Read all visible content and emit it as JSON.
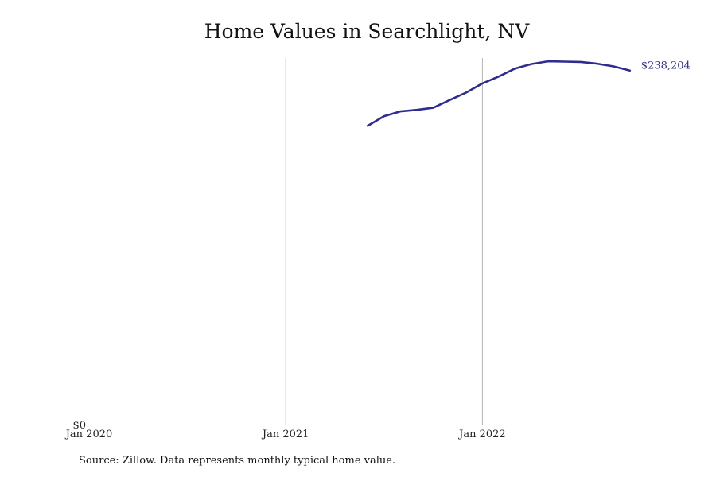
{
  "chart_data": {
    "type": "line",
    "title": "Home Values in Searchlight, NV",
    "xlabel": "",
    "ylabel": "",
    "x_ticks": [
      "Jan 2020",
      "Jan 2021",
      "Jan 2022"
    ],
    "y_ticks": [
      "$0"
    ],
    "x_range": [
      "2020-01",
      "2022-12"
    ],
    "ylim": [
      0,
      246000
    ],
    "grid": "vertical lines at Jan 2021 and Jan 2022",
    "end_label": "$238,204",
    "series": [
      {
        "color": "#2e2d8f",
        "points": [
          {
            "x": "2021-06",
            "y": 200500
          },
          {
            "x": "2021-07",
            "y": 207000
          },
          {
            "x": "2021-08",
            "y": 210200
          },
          {
            "x": "2021-09",
            "y": 211200
          },
          {
            "x": "2021-10",
            "y": 212600
          },
          {
            "x": "2021-11",
            "y": 217800
          },
          {
            "x": "2021-12",
            "y": 222800
          },
          {
            "x": "2022-01",
            "y": 229000
          },
          {
            "x": "2022-02",
            "y": 233600
          },
          {
            "x": "2022-03",
            "y": 239000
          },
          {
            "x": "2022-04",
            "y": 242000
          },
          {
            "x": "2022-05",
            "y": 243800
          },
          {
            "x": "2022-06",
            "y": 243600
          },
          {
            "x": "2022-07",
            "y": 243400
          },
          {
            "x": "2022-08",
            "y": 242200
          },
          {
            "x": "2022-09",
            "y": 240400
          },
          {
            "x": "2022-10",
            "y": 237600
          }
        ]
      }
    ]
  },
  "source": "Source: Zillow. Data represents monthly typical home value."
}
